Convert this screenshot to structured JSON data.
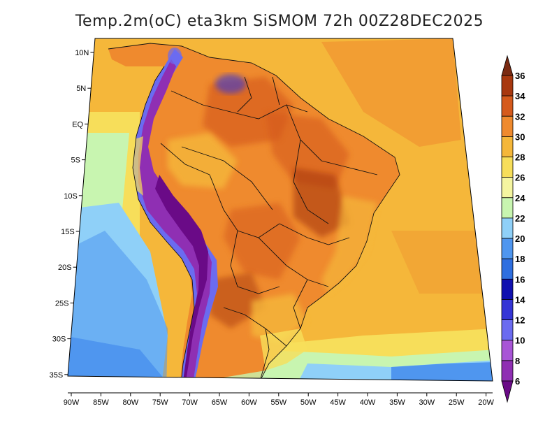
{
  "title": "Temp.2m(oC) eta3km SiSMOM 72h 00Z28DEC2025",
  "axes": {
    "lat_labels": [
      "10N",
      "5N",
      "EQ",
      "5S",
      "10S",
      "15S",
      "20S",
      "25S",
      "30S",
      "35S"
    ],
    "lon_labels": [
      "90W",
      "85W",
      "80W",
      "75W",
      "70W",
      "65W",
      "60W",
      "55W",
      "50W",
      "45W",
      "40W",
      "35W",
      "30W",
      "25W",
      "20W"
    ]
  },
  "colorbar": {
    "labels": [
      "6",
      "8",
      "10",
      "12",
      "14",
      "16",
      "18",
      "20",
      "22",
      "24",
      "26",
      "28",
      "30",
      "32",
      "34",
      "36"
    ],
    "colors": [
      "#6a0a87",
      "#8f2fb3",
      "#a855d6",
      "#6b6bf0",
      "#3535d6",
      "#1010b0",
      "#2f6fe0",
      "#4f96ef",
      "#8fd0f8",
      "#c8f5b0",
      "#f5f5a0",
      "#f7de5a",
      "#f5b73a",
      "#ef8a2e",
      "#d55a1c",
      "#a8380f",
      "#7a2a12"
    ]
  }
}
